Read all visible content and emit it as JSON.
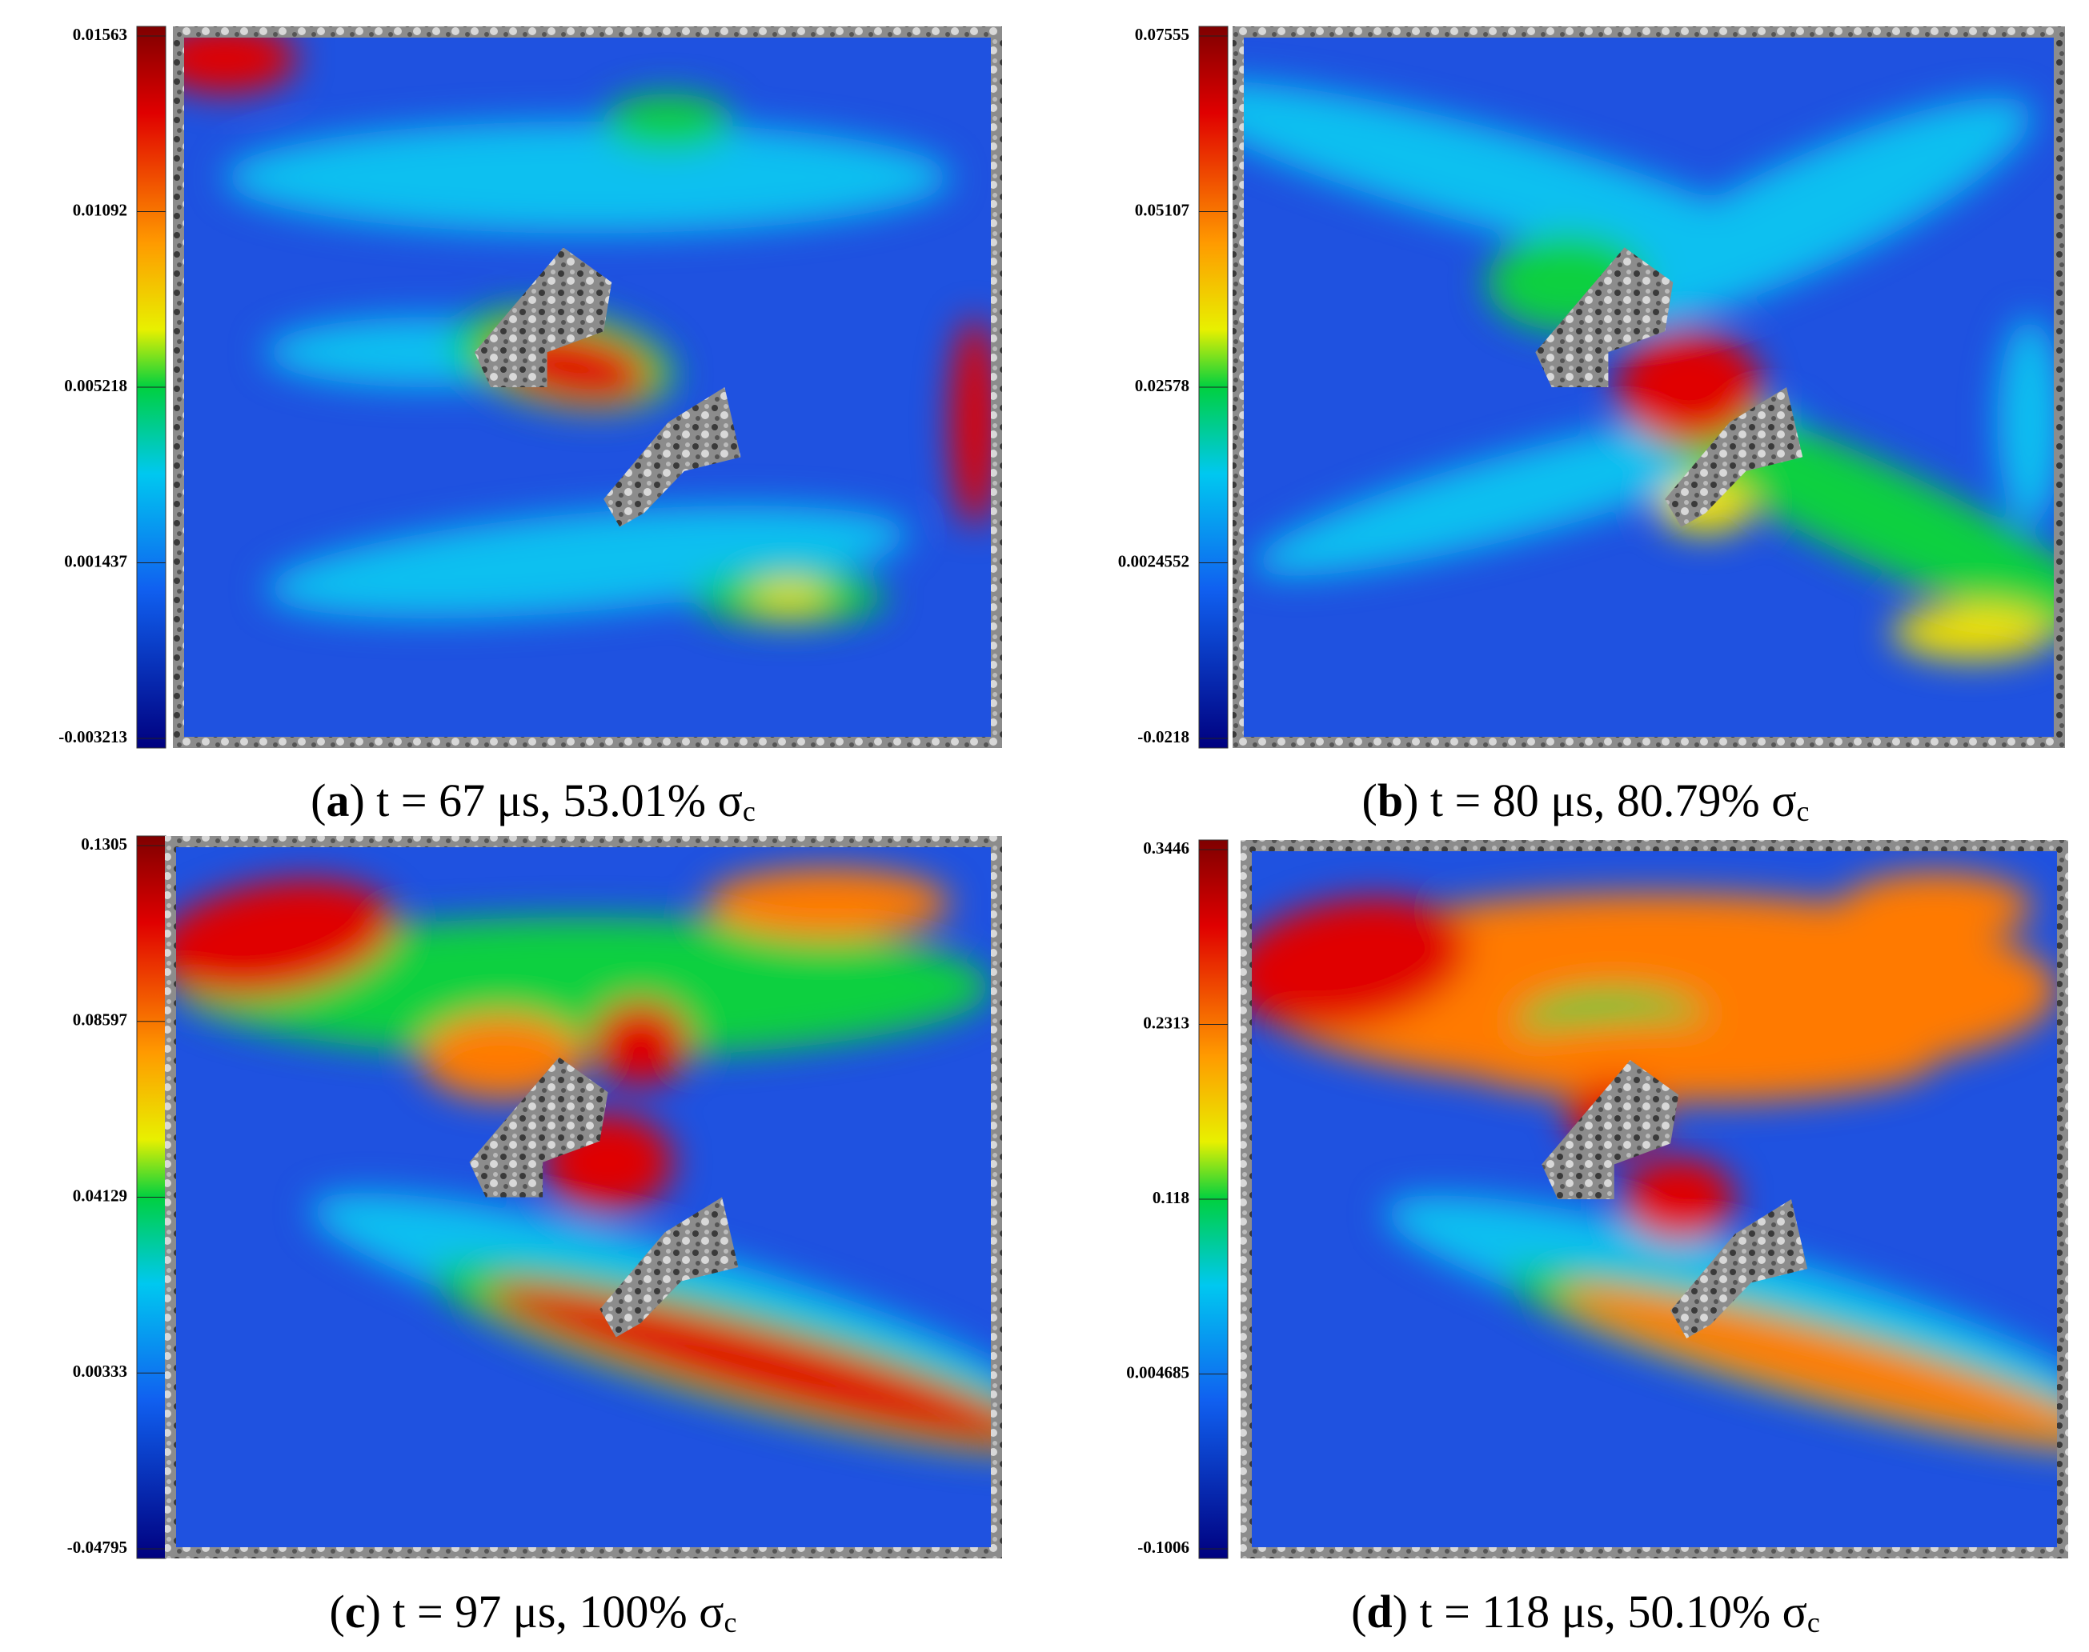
{
  "panels": [
    {
      "ticks": [
        "0.01563",
        "0.01092",
        "0.005218",
        "0.001437",
        "-0.003213"
      ],
      "caption": [
        "(",
        "a",
        ") t = 67 μs, 53.01% σ",
        "c"
      ]
    },
    {
      "ticks": [
        "0.07555",
        "0.05107",
        "0.02578",
        "0.0024552",
        "-0.0218"
      ],
      "caption": [
        "(",
        "b",
        ") t = 80 μs, 80.79% σ",
        "c"
      ]
    },
    {
      "ticks": [
        "0.1305",
        "0.08597",
        "0.04129",
        "0.00333",
        "-0.04795"
      ],
      "caption": [
        "(",
        "c",
        ") t = 97 μs, 100% σ",
        "c"
      ]
    },
    {
      "ticks": [
        "0.3446",
        "0.2313",
        "0.118",
        "0.004685",
        "-0.1006"
      ],
      "caption": [
        "(",
        "d",
        ") t = 118 μs, 50.10% σ",
        "c"
      ]
    }
  ]
}
